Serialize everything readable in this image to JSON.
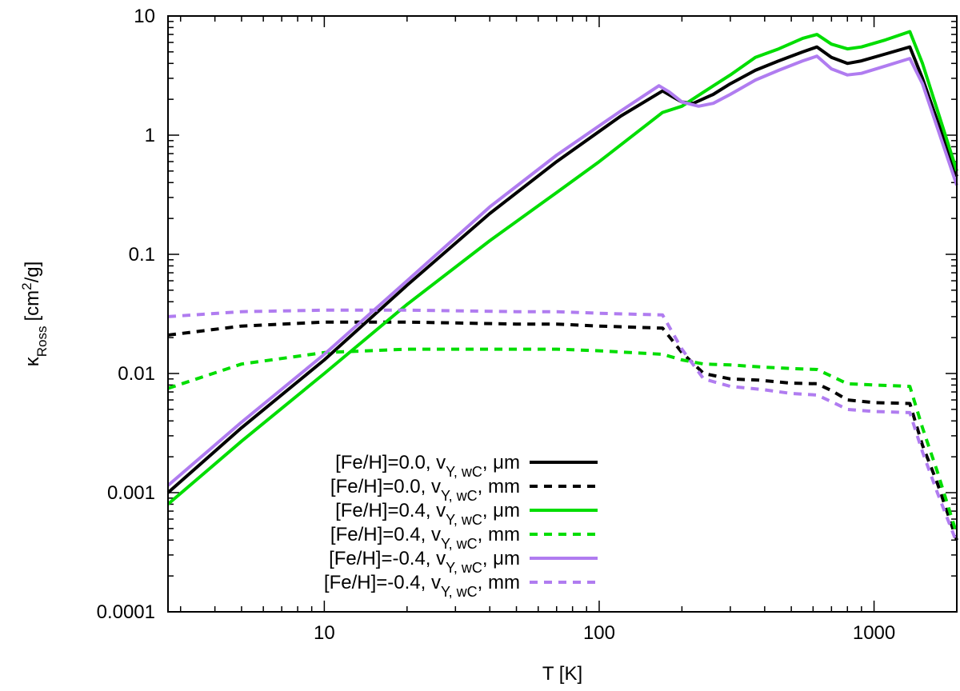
{
  "chart_data": {
    "type": "line",
    "xscale": "log",
    "yscale": "log",
    "xlim": [
      2.7,
      2000
    ],
    "ylim": [
      0.0001,
      10
    ],
    "xlabel": "T [K]",
    "ylabel": {
      "base": "κ",
      "sub": "Ross",
      "unit_pre": "[cm",
      "unit_sup": "2",
      "unit_post": "/g]"
    },
    "x_ticks": [
      {
        "value": 10,
        "label": "10"
      },
      {
        "value": 100,
        "label": "100"
      },
      {
        "value": 1000,
        "label": "1000"
      }
    ],
    "y_ticks": [
      {
        "value": 10,
        "label": "10"
      },
      {
        "value": 1,
        "label": "1"
      },
      {
        "value": 0.1,
        "label": "0.1"
      },
      {
        "value": 0.01,
        "label": "0.01"
      },
      {
        "value": 0.001,
        "label": "0.001"
      },
      {
        "value": 0.0001,
        "label": "0.0001"
      }
    ],
    "legend_position": "bottom-left",
    "series": [
      {
        "name": "[Fe/H]=0.0, vY, wC, μm",
        "legend": {
          "pre": "[Fe/H]=0.0, v",
          "sub": "Y, wC",
          "post": ", μm"
        },
        "color": "#000000",
        "dash": "solid",
        "x": [
          2.7,
          5,
          10,
          20,
          40,
          70,
          120,
          170,
          185,
          200,
          220,
          260,
          300,
          370,
          450,
          550,
          620,
          700,
          800,
          900,
          1100,
          1350,
          1500,
          2000
        ],
        "y": [
          0.001,
          0.0035,
          0.013,
          0.055,
          0.22,
          0.6,
          1.45,
          2.35,
          2.1,
          1.9,
          1.85,
          2.2,
          2.7,
          3.5,
          4.2,
          5.0,
          5.5,
          4.5,
          4.0,
          4.2,
          4.8,
          5.5,
          3.0,
          0.45
        ]
      },
      {
        "name": "[Fe/H]=0.0, vY, wC, mm",
        "legend": {
          "pre": "[Fe/H]=0.0, v",
          "sub": "Y, wC",
          "post": ", mm"
        },
        "color": "#000000",
        "dash": "dashed",
        "x": [
          2.7,
          5,
          10,
          20,
          50,
          70,
          100,
          170,
          200,
          240,
          300,
          380,
          500,
          620,
          700,
          800,
          1000,
          1350,
          1500,
          1700,
          2000
        ],
        "y": [
          0.021,
          0.025,
          0.027,
          0.027,
          0.026,
          0.026,
          0.025,
          0.024,
          0.015,
          0.01,
          0.009,
          0.0088,
          0.0083,
          0.0082,
          0.0072,
          0.006,
          0.0057,
          0.0056,
          0.0025,
          0.0012,
          0.0004
        ]
      },
      {
        "name": "[Fe/H]=0.4, vY, wC, μm",
        "legend": {
          "pre": "[Fe/H]=0.4, v",
          "sub": "Y, wC",
          "post": ", μm"
        },
        "color": "#00dd00",
        "dash": "solid",
        "x": [
          2.7,
          5,
          10,
          20,
          40,
          70,
          100,
          170,
          200,
          240,
          300,
          370,
          450,
          550,
          620,
          700,
          800,
          900,
          1100,
          1350,
          1500,
          2000
        ],
        "y": [
          0.0008,
          0.0027,
          0.01,
          0.038,
          0.13,
          0.33,
          0.6,
          1.55,
          1.75,
          2.3,
          3.2,
          4.5,
          5.3,
          6.5,
          7.0,
          5.8,
          5.3,
          5.5,
          6.3,
          7.4,
          4.0,
          0.5
        ]
      },
      {
        "name": "[Fe/H]=0.4, vY, wC, mm",
        "legend": {
          "pre": "[Fe/H]=0.4, v",
          "sub": "Y, wC",
          "post": ", mm"
        },
        "color": "#00dd00",
        "dash": "dashed",
        "x": [
          2.7,
          5,
          10,
          20,
          50,
          70,
          100,
          170,
          200,
          240,
          300,
          400,
          500,
          620,
          700,
          800,
          1000,
          1350,
          1500,
          1700,
          2000
        ],
        "y": [
          0.0075,
          0.012,
          0.015,
          0.016,
          0.016,
          0.016,
          0.0155,
          0.0145,
          0.013,
          0.012,
          0.0118,
          0.0113,
          0.011,
          0.0108,
          0.0095,
          0.0082,
          0.008,
          0.0078,
          0.0035,
          0.0015,
          0.00045
        ]
      },
      {
        "name": "[Fe/H]=-0.4, vY, wC, μm",
        "legend": {
          "pre": "[Fe/H]=-0.4, v",
          "sub": "Y, wC",
          "post": ", μm"
        },
        "color": "#b07cf0",
        "dash": "solid",
        "x": [
          2.7,
          5,
          10,
          20,
          40,
          70,
          120,
          165,
          180,
          200,
          230,
          260,
          300,
          370,
          450,
          550,
          620,
          700,
          800,
          900,
          1100,
          1350,
          1500,
          2000
        ],
        "y": [
          0.00115,
          0.0039,
          0.0145,
          0.06,
          0.25,
          0.68,
          1.6,
          2.6,
          2.3,
          1.9,
          1.75,
          1.85,
          2.2,
          2.9,
          3.5,
          4.2,
          4.6,
          3.6,
          3.2,
          3.3,
          3.8,
          4.4,
          2.7,
          0.38
        ]
      },
      {
        "name": "[Fe/H]=-0.4, vY, wC, mm",
        "legend": {
          "pre": "[Fe/H]=-0.4, v",
          "sub": "Y, wC",
          "post": ", mm"
        },
        "color": "#b07cf0",
        "dash": "dashed",
        "x": [
          2.7,
          5,
          10,
          20,
          50,
          70,
          100,
          170,
          200,
          240,
          300,
          400,
          500,
          620,
          700,
          800,
          1000,
          1350,
          1500,
          1700,
          2000
        ],
        "y": [
          0.03,
          0.033,
          0.034,
          0.034,
          0.033,
          0.033,
          0.032,
          0.031,
          0.016,
          0.009,
          0.0078,
          0.0073,
          0.0068,
          0.0066,
          0.0058,
          0.005,
          0.0048,
          0.0047,
          0.0022,
          0.001,
          0.00038
        ]
      }
    ]
  }
}
